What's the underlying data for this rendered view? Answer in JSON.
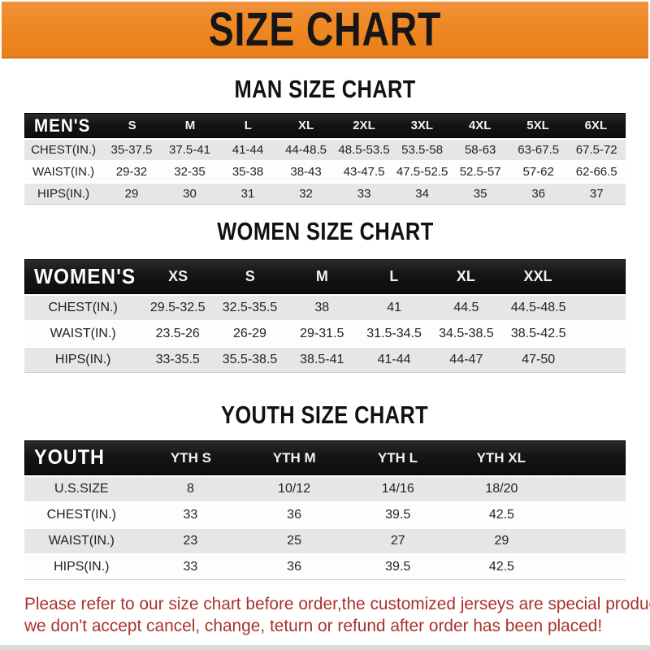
{
  "banner": {
    "title": "SIZE CHART"
  },
  "colors": {
    "banner_bg": "#EE8620",
    "header_bar_bg": "#141414",
    "row_alt_bg": "#E6E6E4",
    "row_bg": "#FDFDFD",
    "footer_text": "#A9322B"
  },
  "sections": [
    {
      "id": "men",
      "heading": "MAN SIZE CHART",
      "group_label": "MEN'S",
      "columns": [
        "S",
        "M",
        "L",
        "XL",
        "2XL",
        "3XL",
        "4XL",
        "5XL",
        "6XL"
      ],
      "rows": [
        {
          "label": "CHEST(IN.)",
          "values": [
            "35-37.5",
            "37.5-41",
            "41-44",
            "44-48.5",
            "48.5-53.5",
            "53.5-58",
            "58-63",
            "63-67.5",
            "67.5-72"
          ]
        },
        {
          "label": "WAIST(IN.)",
          "values": [
            "29-32",
            "32-35",
            "35-38",
            "38-43",
            "43-47.5",
            "47.5-52.5",
            "52.5-57",
            "57-62",
            "62-66.5"
          ]
        },
        {
          "label": "HIPS(IN.)",
          "values": [
            "29",
            "30",
            "31",
            "32",
            "33",
            "34",
            "35",
            "36",
            "37"
          ]
        }
      ]
    },
    {
      "id": "women",
      "heading": "WOMEN SIZE CHART",
      "group_label": "WOMEN'S",
      "columns": [
        "XS",
        "S",
        "M",
        "L",
        "XL",
        "XXL"
      ],
      "rows": [
        {
          "label": "CHEST(IN.)",
          "values": [
            "29.5-32.5",
            "32.5-35.5",
            "38",
            "41",
            "44.5",
            "44.5-48.5"
          ]
        },
        {
          "label": "WAIST(IN.)",
          "values": [
            "23.5-26",
            "26-29",
            "29-31.5",
            "31.5-34.5",
            "34.5-38.5",
            "38.5-42.5"
          ]
        },
        {
          "label": "HIPS(IN.)",
          "values": [
            "33-35.5",
            "35.5-38.5",
            "38.5-41",
            "41-44",
            "44-47",
            "47-50"
          ]
        }
      ]
    },
    {
      "id": "youth",
      "heading": "YOUTH SIZE CHART",
      "group_label": "YOUTH",
      "columns": [
        "YTH S",
        "YTH M",
        "YTH L",
        "YTH XL"
      ],
      "rows": [
        {
          "label": "U.S.SIZE",
          "values": [
            "8",
            "10/12",
            "14/16",
            "18/20"
          ]
        },
        {
          "label": "CHEST(IN.)",
          "values": [
            "33",
            "36",
            "39.5",
            "42.5"
          ]
        },
        {
          "label": "WAIST(IN.)",
          "values": [
            "23",
            "25",
            "27",
            "29"
          ]
        },
        {
          "label": "HIPS(IN.)",
          "values": [
            "33",
            "36",
            "39.5",
            "42.5"
          ]
        }
      ]
    }
  ],
  "footer": {
    "line1": "Please refer to our size chart before order,the customized jerseys are special products,",
    "line2": "we don't accept cancel, change, teturn or refund after order has been placed!"
  }
}
